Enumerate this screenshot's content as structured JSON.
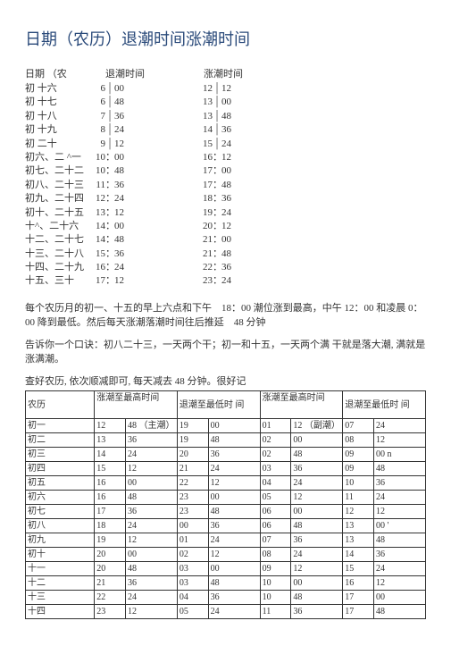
{
  "title": "日期（农历）退潮时间涨潮时间",
  "tide_header": {
    "date": "日期 （农",
    "ebb": "退潮时间",
    "flood": "涨潮时间"
  },
  "tide_rows": [
    {
      "date": "初 十六",
      "eh": "6",
      "sep": "v",
      "em": "00",
      "fh": "12",
      "fsep": "v",
      "fm": "12"
    },
    {
      "date": "初 十七",
      "eh": "6",
      "sep": "v",
      "em": "48",
      "fh": "13",
      "fsep": "v",
      "fm": "00"
    },
    {
      "date": "初 十八",
      "eh": "7",
      "sep": "v",
      "em": "36",
      "fh": "13",
      "fsep": "v",
      "fm": "48"
    },
    {
      "date": "初 十九",
      "eh": "8",
      "sep": "v",
      "em": "24",
      "fh": "14",
      "fsep": "v",
      "fm": "36"
    },
    {
      "date": "初 二十",
      "eh": "9",
      "sep": "v",
      "em": "12",
      "fh": "15",
      "fsep": "v",
      "fm": "24"
    },
    {
      "date": "初六、二 ^一",
      "eh": "10",
      "sep": "c",
      "em": "00",
      "fh": "16",
      "fsep": "c",
      "fm": "12"
    },
    {
      "date": "初七、二十二",
      "eh": "10",
      "sep": "c",
      "em": "48",
      "fh": "17",
      "fsep": "c",
      "fm": "00"
    },
    {
      "date": "初八、二十三",
      "eh": "11",
      "sep": "c",
      "em": " 36",
      "fh": "17",
      "fsep": "c",
      "fm": "48"
    },
    {
      "date": "初九、二十四",
      "eh": "12",
      "sep": "c",
      "em": " 24",
      "fh": "18",
      "fsep": "c",
      "fm": "36"
    },
    {
      "date": "初十、二十五",
      "eh": "13",
      "sep": "c",
      "em": " 12",
      "fh": "19",
      "fsep": "c",
      "fm": "24"
    },
    {
      "date": "十^、二十六",
      "eh": "14",
      "sep": "c",
      "em": "00",
      "fh": "20",
      "fsep": "c",
      "fm": "12"
    },
    {
      "date": "十二、二十七",
      "eh": "14",
      "sep": "c",
      "em": "48",
      "fh": "21",
      "fsep": "c",
      "fm": "00"
    },
    {
      "date": "十三、二十八",
      "eh": "15",
      "sep": "c",
      "em": " 36",
      "fh": "21",
      "fsep": "c",
      "fm": "48"
    },
    {
      "date": "十四、二十九",
      "eh": "16",
      "sep": "c",
      "em": " 24",
      "fh": "22",
      "fsep": "c",
      "fm": "36"
    },
    {
      "date": "十五、三十",
      "eh": "17",
      "sep": "c",
      "em": "12",
      "fh": "23",
      "fsep": "c",
      "fm": "24"
    }
  ],
  "para1": "每个农历月的初一、十五的早上六点和下午　18：00 潮位涨到最高，中午 12：00 和凌晨 0：00 降到最低。然后每天涨潮落潮时间往后推延　48 分钟",
  "para2": "告诉你一个口诀：初八二十三，一天两个干；初一和十五，一天两个满 干就是落大潮, 满就是涨满潮。",
  "para3": "查好农历, 依次顺减即可, 每天减去 48 分钟。很好记",
  "lookup_header": {
    "lunar": "农历",
    "high1": "涨潮至最高时间",
    "low1": "退潮至最低时 间",
    "high2": "涨潮至最高时间",
    "low2": "退潮至最低时 间"
  },
  "lookup_rows": [
    {
      "lunar": "初一",
      "h1": "12",
      "m1": "48 （主潮）",
      "h2": "19",
      "m2": "00",
      "h3": "01",
      "m3": "12 （副潮）",
      "h4": "07",
      "m4": "24"
    },
    {
      "lunar": "初二",
      "h1": "13",
      "m1": "36",
      "h2": "19",
      "m2": "48",
      "h3": "02",
      "m3": "00",
      "h4": "08",
      "m4": "12"
    },
    {
      "lunar": "初三",
      "h1": "14",
      "m1": "24",
      "h2": "20",
      "m2": "36",
      "h3": "02",
      "m3": "48",
      "h4": "09",
      "m4": "00 n"
    },
    {
      "lunar": "初四",
      "h1": "15",
      "m1": "12",
      "h2": "21",
      "m2": "24",
      "h3": "03",
      "m3": "36",
      "h4": "09",
      "m4": "48"
    },
    {
      "lunar": "初五",
      "h1": "16",
      "m1": "00",
      "h2": "22",
      "m2": "12",
      "h3": "04",
      "m3": "24",
      "h4": "10",
      "m4": "36"
    },
    {
      "lunar": "初六",
      "h1": "16",
      "m1": "48",
      "h2": "23",
      "m2": "00",
      "h3": "05",
      "m3": "12",
      "h4": "11",
      "m4": "24"
    },
    {
      "lunar": "初七",
      "h1": "17",
      "m1": "36",
      "h2": "23",
      "m2": "48",
      "h3": "06",
      "m3": "00",
      "h4": "12",
      "m4": "12"
    },
    {
      "lunar": "初八",
      "h1": "18",
      "m1": "24",
      "h2": "00",
      "m2": "36",
      "h3": "06",
      "m3": "48",
      "h4": "13",
      "m4": "00 '"
    },
    {
      "lunar": "初九",
      "h1": "19",
      "m1": "12",
      "h2": "01",
      "m2": "24",
      "h3": "07",
      "m3": "36",
      "h4": "13",
      "m4": "48"
    },
    {
      "lunar": "初十",
      "h1": "20",
      "m1": "00",
      "h2": "02",
      "m2": "12",
      "h3": "08",
      "m3": "24",
      "h4": "14",
      "m4": "36"
    },
    {
      "lunar": "十一",
      "h1": "20",
      "m1": "48",
      "h2": "03",
      "m2": "00",
      "h3": "09",
      "m3": "12",
      "h4": "15",
      "m4": "24"
    },
    {
      "lunar": "十二",
      "h1": "21",
      "m1": "36",
      "h2": "03",
      "m2": "48",
      "h3": "10",
      "m3": "00",
      "h4": "16",
      "m4": "12"
    },
    {
      "lunar": "十三",
      "h1": "22",
      "m1": "24",
      "h2": "04",
      "m2": "36",
      "h3": "10",
      "m3": "48",
      "h4": "17",
      "m4": "00"
    },
    {
      "lunar": "十四",
      "h1": "23",
      "m1": "12",
      "h2": "05",
      "m2": "24",
      "h3": "11",
      "m3": "36",
      "h4": "17",
      "m4": "48"
    }
  ]
}
